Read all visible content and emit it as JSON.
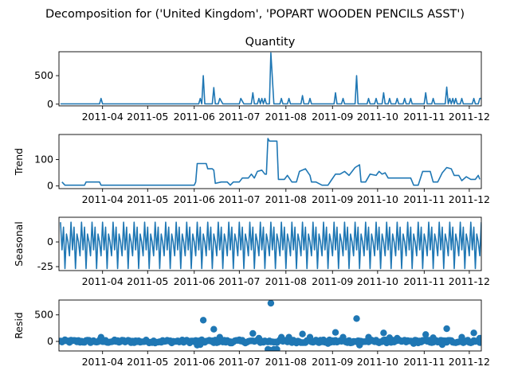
{
  "suptitle": "Decomposition for ('United Kingdom', 'POPART WOODEN PENCILS ASST')",
  "chart_data": [
    {
      "type": "line",
      "panel": "observed",
      "title": "Quantity",
      "ylabel": "",
      "ylim": [
        -30,
        920
      ],
      "yticks": [
        0,
        500
      ],
      "xlim": [
        "2011-03-03",
        "2011-12-09"
      ],
      "xticks": [
        "2011-04",
        "2011-05",
        "2011-06",
        "2011-07",
        "2011-08",
        "2011-09",
        "2011-10",
        "2011-11",
        "2011-12"
      ],
      "baseline": 5,
      "points": [
        {
          "x": "2011-03-04",
          "y": 5
        },
        {
          "x": "2011-03-30",
          "y": 5
        },
        {
          "x": "2011-03-31",
          "y": 100
        },
        {
          "x": "2011-04-01",
          "y": 5
        },
        {
          "x": "2011-06-04",
          "y": 5
        },
        {
          "x": "2011-06-05",
          "y": 100
        },
        {
          "x": "2011-06-06",
          "y": 5
        },
        {
          "x": "2011-06-07",
          "y": 500
        },
        {
          "x": "2011-06-08",
          "y": 5
        },
        {
          "x": "2011-06-13",
          "y": 5
        },
        {
          "x": "2011-06-14",
          "y": 290
        },
        {
          "x": "2011-06-15",
          "y": 5
        },
        {
          "x": "2011-06-17",
          "y": 5
        },
        {
          "x": "2011-06-18",
          "y": 100
        },
        {
          "x": "2011-06-20",
          "y": 5
        },
        {
          "x": "2011-07-01",
          "y": 5
        },
        {
          "x": "2011-07-02",
          "y": 100
        },
        {
          "x": "2011-07-04",
          "y": 5
        },
        {
          "x": "2011-07-09",
          "y": 5
        },
        {
          "x": "2011-07-10",
          "y": 200
        },
        {
          "x": "2011-07-11",
          "y": 5
        },
        {
          "x": "2011-07-13",
          "y": 5
        },
        {
          "x": "2011-07-14",
          "y": 100
        },
        {
          "x": "2011-07-15",
          "y": 5
        },
        {
          "x": "2011-07-16",
          "y": 100
        },
        {
          "x": "2011-07-17",
          "y": 5
        },
        {
          "x": "2011-07-18",
          "y": 100
        },
        {
          "x": "2011-07-19",
          "y": 5
        },
        {
          "x": "2011-07-21",
          "y": 5
        },
        {
          "x": "2011-07-22",
          "y": 900
        },
        {
          "x": "2011-07-24",
          "y": 5
        },
        {
          "x": "2011-07-28",
          "y": 5
        },
        {
          "x": "2011-07-29",
          "y": 100
        },
        {
          "x": "2011-07-30",
          "y": 5
        },
        {
          "x": "2011-08-02",
          "y": 5
        },
        {
          "x": "2011-08-03",
          "y": 100
        },
        {
          "x": "2011-08-04",
          "y": 5
        },
        {
          "x": "2011-08-11",
          "y": 5
        },
        {
          "x": "2011-08-12",
          "y": 150
        },
        {
          "x": "2011-08-13",
          "y": 5
        },
        {
          "x": "2011-08-16",
          "y": 5
        },
        {
          "x": "2011-08-17",
          "y": 100
        },
        {
          "x": "2011-08-18",
          "y": 5
        },
        {
          "x": "2011-09-02",
          "y": 5
        },
        {
          "x": "2011-09-03",
          "y": 200
        },
        {
          "x": "2011-09-04",
          "y": 5
        },
        {
          "x": "2011-09-07",
          "y": 5
        },
        {
          "x": "2011-09-08",
          "y": 100
        },
        {
          "x": "2011-09-09",
          "y": 5
        },
        {
          "x": "2011-09-16",
          "y": 5
        },
        {
          "x": "2011-09-17",
          "y": 500
        },
        {
          "x": "2011-09-18",
          "y": 5
        },
        {
          "x": "2011-09-24",
          "y": 5
        },
        {
          "x": "2011-09-25",
          "y": 100
        },
        {
          "x": "2011-09-26",
          "y": 5
        },
        {
          "x": "2011-09-29",
          "y": 5
        },
        {
          "x": "2011-09-30",
          "y": 100
        },
        {
          "x": "2011-10-01",
          "y": 5
        },
        {
          "x": "2011-10-04",
          "y": 5
        },
        {
          "x": "2011-10-05",
          "y": 200
        },
        {
          "x": "2011-10-06",
          "y": 5
        },
        {
          "x": "2011-10-08",
          "y": 5
        },
        {
          "x": "2011-10-09",
          "y": 100
        },
        {
          "x": "2011-10-10",
          "y": 5
        },
        {
          "x": "2011-10-13",
          "y": 5
        },
        {
          "x": "2011-10-14",
          "y": 100
        },
        {
          "x": "2011-10-15",
          "y": 5
        },
        {
          "x": "2011-10-18",
          "y": 5
        },
        {
          "x": "2011-10-19",
          "y": 100
        },
        {
          "x": "2011-10-20",
          "y": 5
        },
        {
          "x": "2011-10-22",
          "y": 5
        },
        {
          "x": "2011-10-23",
          "y": 100
        },
        {
          "x": "2011-10-24",
          "y": 5
        },
        {
          "x": "2011-11-01",
          "y": 5
        },
        {
          "x": "2011-11-02",
          "y": 200
        },
        {
          "x": "2011-11-03",
          "y": 5
        },
        {
          "x": "2011-11-06",
          "y": 5
        },
        {
          "x": "2011-11-07",
          "y": 100
        },
        {
          "x": "2011-11-08",
          "y": 5
        },
        {
          "x": "2011-11-15",
          "y": 5
        },
        {
          "x": "2011-11-16",
          "y": 300
        },
        {
          "x": "2011-11-17",
          "y": 5
        },
        {
          "x": "2011-11-18",
          "y": 100
        },
        {
          "x": "2011-11-19",
          "y": 5
        },
        {
          "x": "2011-11-20",
          "y": 100
        },
        {
          "x": "2011-11-21",
          "y": 5
        },
        {
          "x": "2011-11-22",
          "y": 100
        },
        {
          "x": "2011-11-23",
          "y": 5
        },
        {
          "x": "2011-11-25",
          "y": 5
        },
        {
          "x": "2011-11-26",
          "y": 100
        },
        {
          "x": "2011-11-27",
          "y": 5
        },
        {
          "x": "2011-12-03",
          "y": 5
        },
        {
          "x": "2011-12-04",
          "y": 100
        },
        {
          "x": "2011-12-05",
          "y": 5
        },
        {
          "x": "2011-12-07",
          "y": 5
        },
        {
          "x": "2011-12-08",
          "y": 100
        },
        {
          "x": "2011-12-09",
          "y": 100
        }
      ]
    },
    {
      "type": "line",
      "panel": "trend",
      "title": "",
      "ylabel": "Trend",
      "ylim": [
        -10,
        195
      ],
      "yticks": [
        0,
        100
      ],
      "xlim": [
        "2011-03-03",
        "2011-12-09"
      ],
      "xticks": [
        "2011-04",
        "2011-05",
        "2011-06",
        "2011-07",
        "2011-08",
        "2011-09",
        "2011-10",
        "2011-11",
        "2011-12"
      ],
      "points": [
        {
          "x": "2011-03-05",
          "y": 15
        },
        {
          "x": "2011-03-07",
          "y": 3
        },
        {
          "x": "2011-03-20",
          "y": 3
        },
        {
          "x": "2011-03-21",
          "y": 15
        },
        {
          "x": "2011-03-30",
          "y": 15
        },
        {
          "x": "2011-03-31",
          "y": 3
        },
        {
          "x": "2011-06-01",
          "y": 3
        },
        {
          "x": "2011-06-02",
          "y": 15
        },
        {
          "x": "2011-06-03",
          "y": 85
        },
        {
          "x": "2011-06-09",
          "y": 85
        },
        {
          "x": "2011-06-10",
          "y": 65
        },
        {
          "x": "2011-06-13",
          "y": 65
        },
        {
          "x": "2011-06-14",
          "y": 60
        },
        {
          "x": "2011-06-15",
          "y": 10
        },
        {
          "x": "2011-06-19",
          "y": 15
        },
        {
          "x": "2011-06-23",
          "y": 15
        },
        {
          "x": "2011-06-25",
          "y": 3
        },
        {
          "x": "2011-06-27",
          "y": 15
        },
        {
          "x": "2011-07-01",
          "y": 15
        },
        {
          "x": "2011-07-03",
          "y": 30
        },
        {
          "x": "2011-07-07",
          "y": 30
        },
        {
          "x": "2011-07-09",
          "y": 45
        },
        {
          "x": "2011-07-11",
          "y": 30
        },
        {
          "x": "2011-07-13",
          "y": 55
        },
        {
          "x": "2011-07-16",
          "y": 60
        },
        {
          "x": "2011-07-18",
          "y": 45
        },
        {
          "x": "2011-07-19",
          "y": 45
        },
        {
          "x": "2011-07-20",
          "y": 180
        },
        {
          "x": "2011-07-21",
          "y": 170
        },
        {
          "x": "2011-07-26",
          "y": 170
        },
        {
          "x": "2011-07-27",
          "y": 25
        },
        {
          "x": "2011-07-31",
          "y": 25
        },
        {
          "x": "2011-08-02",
          "y": 40
        },
        {
          "x": "2011-08-05",
          "y": 15
        },
        {
          "x": "2011-08-08",
          "y": 15
        },
        {
          "x": "2011-08-10",
          "y": 55
        },
        {
          "x": "2011-08-14",
          "y": 65
        },
        {
          "x": "2011-08-17",
          "y": 40
        },
        {
          "x": "2011-08-18",
          "y": 15
        },
        {
          "x": "2011-08-21",
          "y": 15
        },
        {
          "x": "2011-08-25",
          "y": 3
        },
        {
          "x": "2011-08-29",
          "y": 3
        },
        {
          "x": "2011-08-31",
          "y": 20
        },
        {
          "x": "2011-09-03",
          "y": 45
        },
        {
          "x": "2011-09-06",
          "y": 45
        },
        {
          "x": "2011-09-09",
          "y": 55
        },
        {
          "x": "2011-09-12",
          "y": 40
        },
        {
          "x": "2011-09-16",
          "y": 70
        },
        {
          "x": "2011-09-19",
          "y": 80
        },
        {
          "x": "2011-09-20",
          "y": 15
        },
        {
          "x": "2011-09-23",
          "y": 15
        },
        {
          "x": "2011-09-26",
          "y": 45
        },
        {
          "x": "2011-09-30",
          "y": 40
        },
        {
          "x": "2011-10-02",
          "y": 55
        },
        {
          "x": "2011-10-04",
          "y": 45
        },
        {
          "x": "2011-10-06",
          "y": 50
        },
        {
          "x": "2011-10-08",
          "y": 30
        },
        {
          "x": "2011-10-23",
          "y": 30
        },
        {
          "x": "2011-10-25",
          "y": 3
        },
        {
          "x": "2011-10-28",
          "y": 3
        },
        {
          "x": "2011-10-31",
          "y": 55
        },
        {
          "x": "2011-11-05",
          "y": 55
        },
        {
          "x": "2011-11-07",
          "y": 15
        },
        {
          "x": "2011-11-10",
          "y": 15
        },
        {
          "x": "2011-11-13",
          "y": 50
        },
        {
          "x": "2011-11-16",
          "y": 70
        },
        {
          "x": "2011-11-19",
          "y": 65
        },
        {
          "x": "2011-11-21",
          "y": 40
        },
        {
          "x": "2011-11-24",
          "y": 40
        },
        {
          "x": "2011-11-26",
          "y": 20
        },
        {
          "x": "2011-11-29",
          "y": 35
        },
        {
          "x": "2011-12-02",
          "y": 25
        },
        {
          "x": "2011-12-05",
          "y": 25
        },
        {
          "x": "2011-12-07",
          "y": 40
        },
        {
          "x": "2011-12-08",
          "y": 25
        }
      ]
    },
    {
      "type": "line",
      "panel": "seasonal",
      "title": "",
      "ylabel": "Seasonal",
      "ylim": [
        -29,
        25
      ],
      "yticks": [
        -25,
        0
      ],
      "xlim": [
        "2011-03-03",
        "2011-12-09"
      ],
      "xticks": [
        "2011-04",
        "2011-05",
        "2011-06",
        "2011-07",
        "2011-08",
        "2011-09",
        "2011-10",
        "2011-11",
        "2011-12"
      ],
      "period_days": 7,
      "cycle": [
        20,
        -8,
        15,
        -27,
        8,
        0,
        -14
      ],
      "start": "2011-03-04",
      "end": "2011-12-09"
    },
    {
      "type": "scatter",
      "panel": "resid",
      "title": "",
      "ylabel": "Resid",
      "ylim": [
        -180,
        780
      ],
      "yticks": [
        0,
        500
      ],
      "xlim": [
        "2011-03-03",
        "2011-12-09"
      ],
      "xticks": [
        "2011-04",
        "2011-05",
        "2011-06",
        "2011-07",
        "2011-08",
        "2011-09",
        "2011-10",
        "2011-11",
        "2011-12"
      ],
      "points": [
        {
          "x": "2011-03-31",
          "y": 80
        },
        {
          "x": "2011-06-07",
          "y": 400
        },
        {
          "x": "2011-06-14",
          "y": 230
        },
        {
          "x": "2011-06-18",
          "y": 80
        },
        {
          "x": "2011-07-10",
          "y": 150
        },
        {
          "x": "2011-07-14",
          "y": 60
        },
        {
          "x": "2011-07-22",
          "y": 720
        },
        {
          "x": "2011-07-29",
          "y": 80
        },
        {
          "x": "2011-08-03",
          "y": 80
        },
        {
          "x": "2011-08-12",
          "y": 140
        },
        {
          "x": "2011-08-17",
          "y": 80
        },
        {
          "x": "2011-09-03",
          "y": 170
        },
        {
          "x": "2011-09-08",
          "y": 80
        },
        {
          "x": "2011-09-17",
          "y": 430
        },
        {
          "x": "2011-09-25",
          "y": 80
        },
        {
          "x": "2011-10-05",
          "y": 160
        },
        {
          "x": "2011-10-09",
          "y": 70
        },
        {
          "x": "2011-10-14",
          "y": 60
        },
        {
          "x": "2011-11-02",
          "y": 130
        },
        {
          "x": "2011-11-07",
          "y": 70
        },
        {
          "x": "2011-11-16",
          "y": 240
        },
        {
          "x": "2011-11-26",
          "y": 80
        },
        {
          "x": "2011-12-04",
          "y": 160
        },
        {
          "x": "2011-12-08",
          "y": 60
        },
        {
          "x": "2011-07-20",
          "y": -150
        },
        {
          "x": "2011-07-21",
          "y": -160
        },
        {
          "x": "2011-07-24",
          "y": -150
        },
        {
          "x": "2011-07-26",
          "y": -150
        },
        {
          "x": "2011-06-03",
          "y": -70
        },
        {
          "x": "2011-06-05",
          "y": -60
        },
        {
          "x": "2011-09-19",
          "y": -70
        },
        {
          "x": "2011-08-29",
          "y": -40
        },
        {
          "x": "2011-10-25",
          "y": -40
        },
        {
          "x": "2011-11-13",
          "y": -60
        },
        {
          "x": "2011-06-25",
          "y": -30
        }
      ],
      "noise": {
        "start": "2011-03-04",
        "end": "2011-12-09",
        "amplitude": 30
      }
    }
  ]
}
